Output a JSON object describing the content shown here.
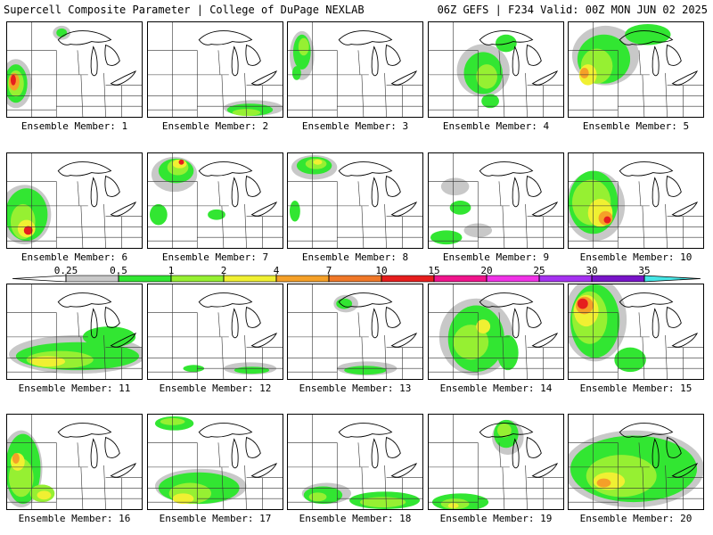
{
  "header": {
    "left_title": "Supercell Composite Parameter | College of DuPage NEXLAB",
    "right_title": "06Z GEFS | F234 Valid: 00Z MON JUN 02 2025"
  },
  "colorbar": {
    "ticks": [
      "0.25",
      "0.5",
      "1",
      "2",
      "4",
      "7",
      "10",
      "15",
      "20",
      "25",
      "30",
      "35"
    ],
    "colors": [
      "#c8c8c8",
      "#32e632",
      "#96f032",
      "#f0f032",
      "#f5a028",
      "#f07828",
      "#e61e1e",
      "#f0148c",
      "#f032e6",
      "#a532f0",
      "#7814c8",
      "#46e6e6"
    ],
    "left_end_color": "#ffffff",
    "right_end_color": "#46e6e6"
  },
  "panels": [
    {
      "label": "Ensemble Member: 1"
    },
    {
      "label": "Ensemble Member: 2"
    },
    {
      "label": "Ensemble Member: 3"
    },
    {
      "label": "Ensemble Member: 4"
    },
    {
      "label": "Ensemble Member: 5"
    },
    {
      "label": "Ensemble Member: 6"
    },
    {
      "label": "Ensemble Member: 7"
    },
    {
      "label": "Ensemble Member: 8"
    },
    {
      "label": "Ensemble Member: 9"
    },
    {
      "label": "Ensemble Member: 10"
    },
    {
      "label": "Ensemble Member: 11"
    },
    {
      "label": "Ensemble Member: 12"
    },
    {
      "label": "Ensemble Member: 13"
    },
    {
      "label": "Ensemble Member: 14"
    },
    {
      "label": "Ensemble Member: 15"
    },
    {
      "label": "Ensemble Member: 16"
    },
    {
      "label": "Ensemble Member: 17"
    },
    {
      "label": "Ensemble Member: 18"
    },
    {
      "label": "Ensemble Member: 19"
    },
    {
      "label": "Ensemble Member: 20"
    }
  ]
}
